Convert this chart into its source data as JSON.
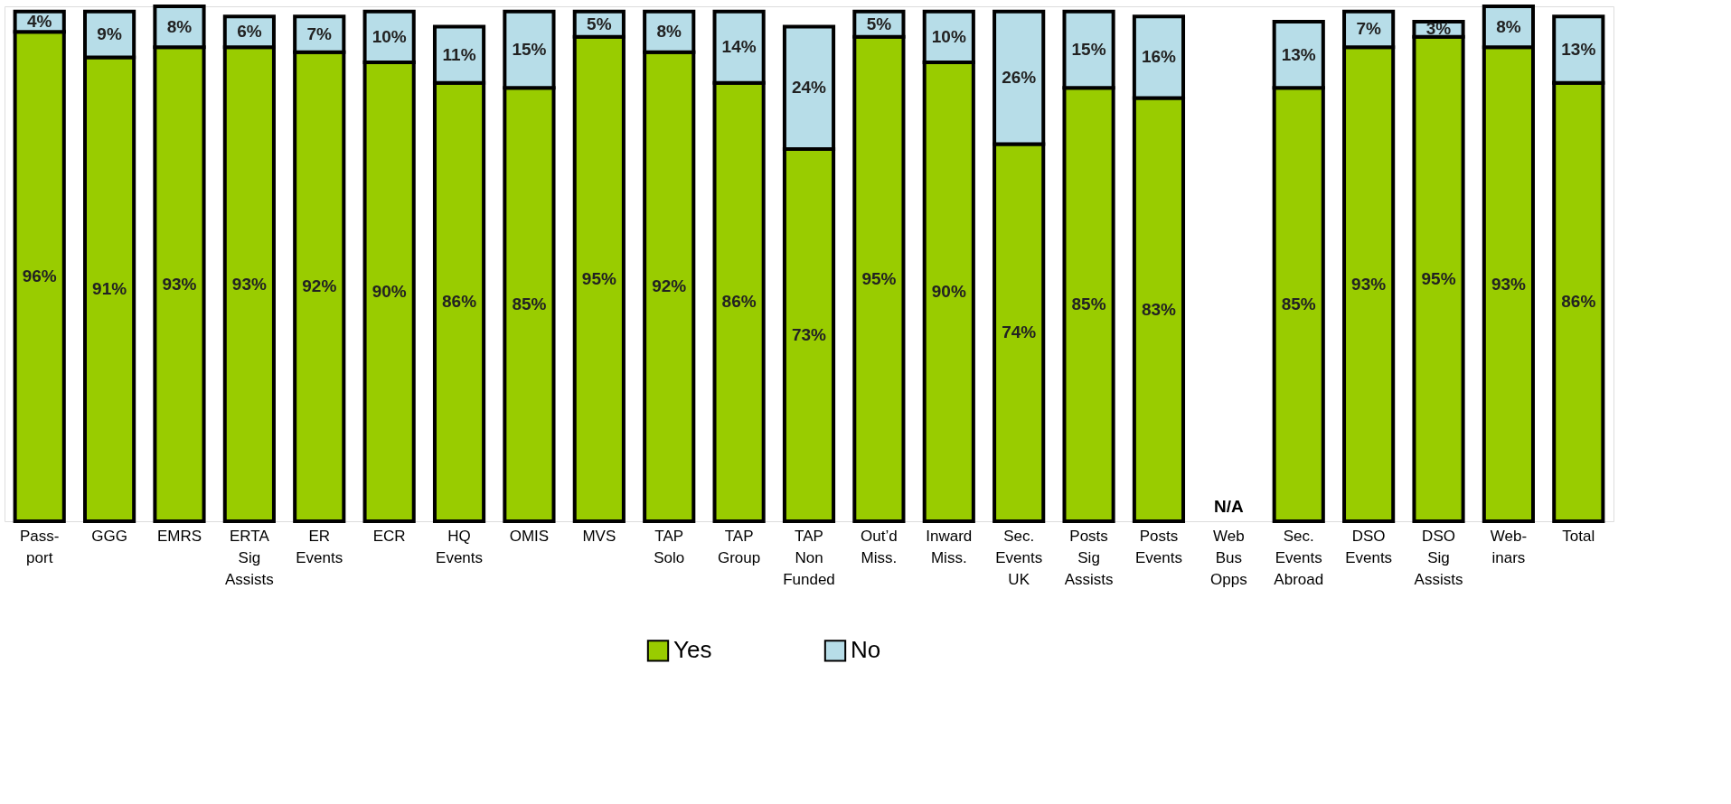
{
  "chart_data": {
    "type": "bar",
    "stacked": true,
    "legend": "bottom",
    "categories": [
      "Pass-\nport",
      "GGG",
      "EMRS",
      "ERTA\nSig\nAssists",
      "ER\nEvents",
      "ECR",
      "HQ\nEvents",
      "OMIS",
      "MVS",
      "TAP\nSolo",
      "TAP\nGroup",
      "TAP\nNon\nFunded",
      "Out’d\nMiss.",
      "Inward\nMiss.",
      "Sec.\nEvents\nUK",
      "Posts\nSig\nAssists",
      "Posts\nEvents",
      "Web\nBus\nOpps",
      "Sec.\nEvents\nAbroad",
      "DSO\nEvents",
      "DSO\nSig\nAssists",
      "Web-\ninars",
      "Total"
    ],
    "series": [
      {
        "name": "Yes",
        "color": "#99cc00",
        "values": [
          96,
          91,
          93,
          93,
          92,
          90,
          86,
          85,
          95,
          92,
          86,
          73,
          95,
          90,
          74,
          85,
          83,
          null,
          85,
          93,
          95,
          93,
          86
        ],
        "value_labels": [
          "96%",
          "91%",
          "93%",
          "93%",
          "92%",
          "90%",
          "86%",
          "85%",
          "95%",
          "92%",
          "86%",
          "73%",
          "95%",
          "90%",
          "74%",
          "85%",
          "83%",
          null,
          "85%",
          "93%",
          "95%",
          "93%",
          "86%"
        ]
      },
      {
        "name": "No",
        "color": "#b7dde8",
        "values": [
          4,
          9,
          8,
          6,
          7,
          10,
          11,
          15,
          5,
          8,
          14,
          24,
          5,
          10,
          26,
          15,
          16,
          null,
          13,
          7,
          3,
          8,
          13
        ],
        "value_labels": [
          "4%",
          "9%",
          "8%",
          "6%",
          "7%",
          "10%",
          "11%",
          "15%",
          "5%",
          "8%",
          "14%",
          "24%",
          "5%",
          "10%",
          "26%",
          "15%",
          "16%",
          null,
          "13%",
          "7%",
          "3%",
          "8%",
          "13%"
        ]
      }
    ],
    "annotations": [
      "N/A"
    ]
  }
}
